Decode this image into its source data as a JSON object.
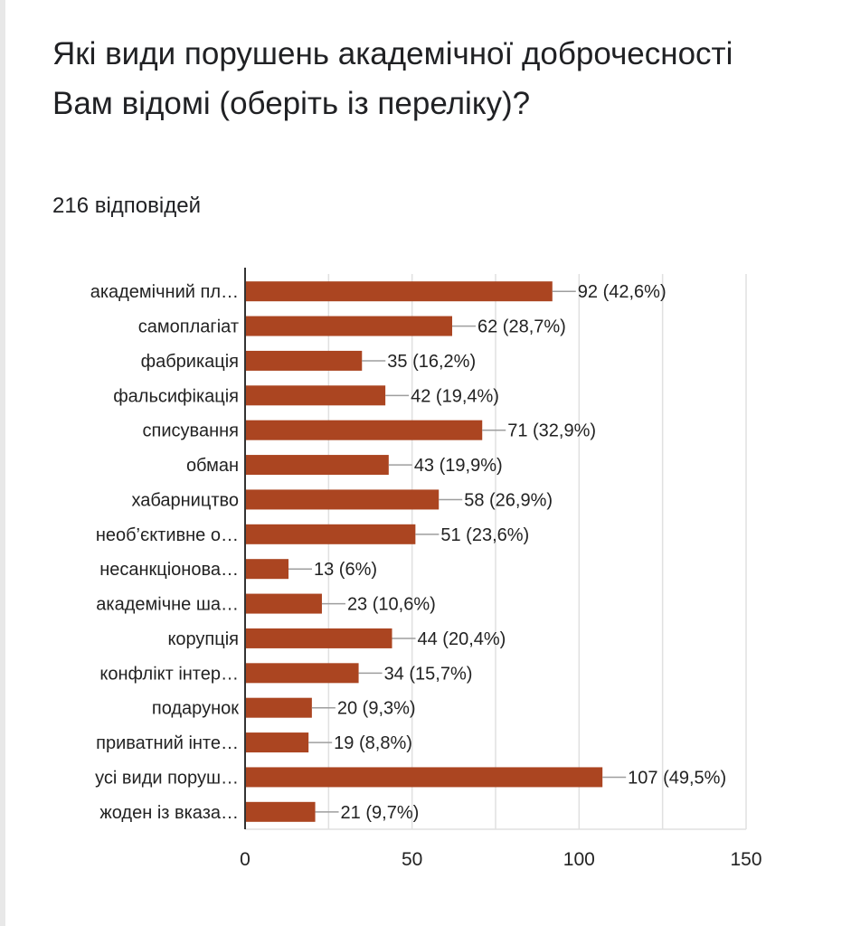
{
  "question": {
    "title": "Які види порушень академічної доброчесності Вам відомі (оберіть із переліку)?",
    "responses": "216 відповідей"
  },
  "colors": {
    "bar": "#ab4521",
    "grid": "#e0e0e0",
    "axis": "#333333",
    "text": "#222222"
  },
  "chart_data": {
    "type": "bar",
    "orientation": "horizontal",
    "title": "",
    "xlabel": "",
    "ylabel": "",
    "xlim": [
      0,
      150
    ],
    "x_ticks": [
      0,
      50,
      100,
      150
    ],
    "grid": true,
    "categories": [
      "академічний пл…",
      "самоплагіат",
      "фабрикація",
      "фальсифікація",
      "списування",
      "обман",
      "хабарництво",
      "необ’єктивне о…",
      "несанкціонова…",
      "академічне ша…",
      "корупція",
      "конфлікт інтер…",
      "подарунок",
      "приватний інте…",
      "усі види поруш…",
      "жоден із вказа…"
    ],
    "values": [
      92,
      62,
      35,
      42,
      71,
      43,
      58,
      51,
      13,
      23,
      44,
      34,
      20,
      19,
      107,
      21
    ],
    "value_labels": [
      "92 (42,6%)",
      "62 (28,7%)",
      "35 (16,2%)",
      "42 (19,4%)",
      "71 (32,9%)",
      "43 (19,9%)",
      "58 (26,9%)",
      "51 (23,6%)",
      "13 (6%)",
      "23 (10,6%)",
      "44 (20,4%)",
      "34 (15,7%)",
      "20 (9,3%)",
      "19 (8,8%)",
      "107 (49,5%)",
      "21 (9,7%)"
    ]
  }
}
